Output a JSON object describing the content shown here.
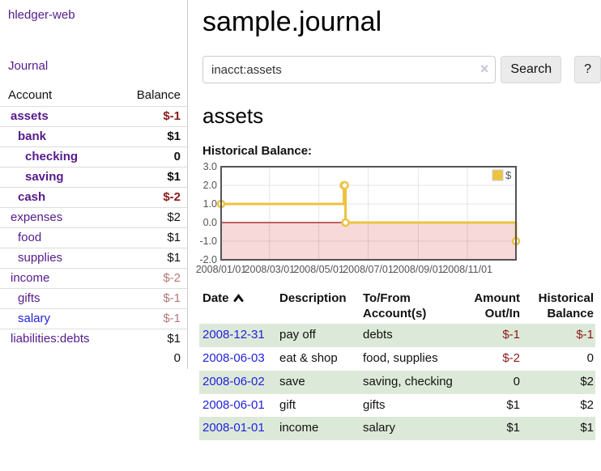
{
  "sidebar": {
    "brand": "hledger-web",
    "journal_link": "Journal",
    "accounts": {
      "headers": [
        "Account",
        "Balance"
      ],
      "rows": [
        {
          "name": "assets",
          "indent": 1,
          "bold": true,
          "balance": "$-1",
          "balance_class": "neg-strong"
        },
        {
          "name": "bank",
          "indent": 2,
          "bold": true,
          "balance": "$1",
          "balance_class": ""
        },
        {
          "name": "checking",
          "indent": 3,
          "bold": true,
          "balance": "0",
          "balance_class": ""
        },
        {
          "name": "saving",
          "indent": 3,
          "bold": true,
          "balance": "$1",
          "balance_class": ""
        },
        {
          "name": "cash",
          "indent": 2,
          "bold": true,
          "balance": "$-2",
          "balance_class": "neg-strong"
        },
        {
          "name": "expenses",
          "indent": 1,
          "bold": false,
          "balance": "$2",
          "balance_class": ""
        },
        {
          "name": "food",
          "indent": 2,
          "bold": false,
          "balance": "$1",
          "balance_class": ""
        },
        {
          "name": "supplies",
          "indent": 2,
          "bold": false,
          "balance": "$1",
          "balance_class": ""
        },
        {
          "name": "income",
          "indent": 1,
          "bold": false,
          "balance": "$-2",
          "balance_class": "neg-soft"
        },
        {
          "name": "gifts",
          "indent": 2,
          "bold": false,
          "balance": "$-1",
          "balance_class": "neg-soft"
        },
        {
          "name": "salary",
          "indent": 2,
          "bold": false,
          "blue": true,
          "balance": "$-1",
          "balance_class": "neg-soft"
        },
        {
          "name": "liabilities:debts",
          "indent": 1,
          "bold": false,
          "balance": "$1",
          "balance_class": ""
        }
      ],
      "total": "0"
    }
  },
  "main": {
    "title": "sample.journal",
    "search": {
      "value": "inacct:assets",
      "clear_icon": "×",
      "search_button": "Search",
      "help_button": "?"
    },
    "account_heading": "assets",
    "chart_label": "Historical Balance:",
    "register": {
      "headers": {
        "date": "Date",
        "description": "Description",
        "accounts": "To/From Account(s)",
        "amount": "Amount Out/In",
        "balance": "Historical Balance"
      },
      "sort_icon": "chevron-up",
      "rows": [
        {
          "date": "2008-12-31",
          "description": "pay off",
          "accounts": "debts",
          "amount": "$-1",
          "amount_negative": true,
          "balance": "$-1",
          "balance_negative": true,
          "shaded": true
        },
        {
          "date": "2008-06-03",
          "description": "eat & shop",
          "accounts": "food, supplies",
          "amount": "$-2",
          "amount_negative": true,
          "balance": "0",
          "balance_negative": false,
          "shaded": false
        },
        {
          "date": "2008-06-02",
          "description": "save",
          "accounts": "saving, checking",
          "amount": "0",
          "amount_negative": false,
          "balance": "$2",
          "balance_negative": false,
          "shaded": true
        },
        {
          "date": "2008-06-01",
          "description": "gift",
          "accounts": "gifts",
          "amount": "$1",
          "amount_negative": false,
          "balance": "$2",
          "balance_negative": false,
          "shaded": false
        },
        {
          "date": "2008-01-01",
          "description": "income",
          "accounts": "salary",
          "amount": "$1",
          "amount_negative": false,
          "balance": "$1",
          "balance_negative": false,
          "shaded": true
        }
      ]
    }
  },
  "chart_data": {
    "type": "line",
    "title": "Historical Balance",
    "steps": true,
    "series": [
      {
        "name": "$",
        "color": "#edc240",
        "points": [
          [
            "2008-01-01",
            1
          ],
          [
            "2008-06-01",
            2
          ],
          [
            "2008-06-02",
            2
          ],
          [
            "2008-06-03",
            0
          ],
          [
            "2008-12-31",
            -1
          ]
        ]
      }
    ],
    "x_range": [
      "2008-01-01",
      "2008-12-31"
    ],
    "ylim": [
      -2,
      3
    ],
    "y_tick_labels": [
      "3.0",
      "2.0",
      "1.0",
      "0.0",
      "-1.0",
      "-2.0"
    ],
    "y_ticks": [
      3,
      2,
      1,
      0,
      -1,
      -2
    ],
    "x_ticks": [
      {
        "date": "2008-01-01",
        "label": "2008/01/01"
      },
      {
        "date": "2008-03-01",
        "label": "2008/03/01"
      },
      {
        "date": "2008-05-01",
        "label": "2008/05/01"
      },
      {
        "date": "2008-07-01",
        "label": "2008/07/01"
      },
      {
        "date": "2008-09-01",
        "label": "2008/09/01"
      },
      {
        "date": "2008-11-01",
        "label": "2008/11/01"
      }
    ],
    "grid": true,
    "legend": {
      "label": "$",
      "position": "top-right"
    },
    "colors": {
      "line": "#edc240",
      "marker_fill": "#ffffff",
      "negative_region_fill": "#f8d9d9",
      "zero_line": "#991111",
      "axis": "#545454",
      "gridline": "rgba(0,0,0,0.10)",
      "legend_box_border": "#cccccc"
    }
  },
  "colors": {
    "link_purple": "#551a8b",
    "link_blue": "#2222dd",
    "negative_strong": "#8b1a1a",
    "negative_soft": "#b57878",
    "shaded_row_green": "#dde9d8"
  }
}
